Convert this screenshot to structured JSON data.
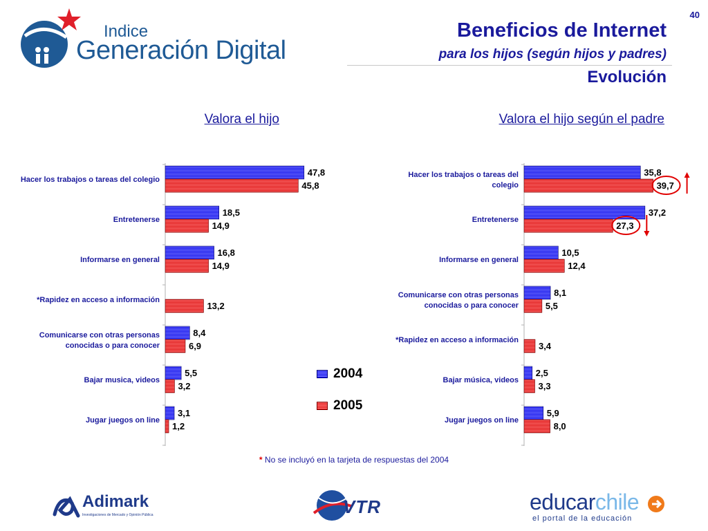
{
  "page_number": "40",
  "title": {
    "line1": "Beneficios de Internet",
    "line2": "para los hijos (según hijos y padres)",
    "line3": "Evolución"
  },
  "logos": {
    "top_left_small": "Indice",
    "top_left_big": "Generación Digital",
    "adimark": "Adimark",
    "adimark_sub": "Investigaciones de Mercado y Opinión Pública",
    "vtr": "VTR",
    "educar_a": "educar",
    "educar_b": "chile",
    "educar_sub": "el portal de la educación"
  },
  "legend": [
    {
      "label": "2004",
      "color": "#1f1fff"
    },
    {
      "label": "2005",
      "color": "#ff1f1f"
    }
  ],
  "footnote": {
    "star": "*",
    "text": " No se incluyó en la tarjeta de respuestas del 2004"
  },
  "chart_data": [
    {
      "type": "bar",
      "orientation": "horizontal",
      "title": "Valora el hijo",
      "categories": [
        [
          "Hacer los trabajos o tareas del colegio"
        ],
        [
          "Entretenerse"
        ],
        [
          "Informarse en general"
        ],
        [
          "*Rapidez en acceso a información"
        ],
        [
          "Comunicarse con otras personas",
          "conocidas o para conocer"
        ],
        [
          "Bajar musica, videos"
        ],
        [
          "Jugar juegos on line"
        ]
      ],
      "series": [
        {
          "name": "2004",
          "values": [
            47.8,
            18.5,
            16.8,
            null,
            8.4,
            5.5,
            3.1
          ],
          "labels": [
            "47,8",
            "18,5",
            "16,8",
            "",
            "8,4",
            "5,5",
            "3,1"
          ]
        },
        {
          "name": "2005",
          "values": [
            45.8,
            14.9,
            14.9,
            13.2,
            6.9,
            3.2,
            1.2
          ],
          "labels": [
            "45,8",
            "14,9",
            "14,9",
            "13,2",
            "6,9",
            "3,2",
            "1,2"
          ]
        }
      ],
      "xlim": [
        0,
        100
      ]
    },
    {
      "type": "bar",
      "orientation": "horizontal",
      "title": "Valora el hijo según el padre",
      "categories": [
        [
          "Hacer los trabajos o tareas del",
          "colegio"
        ],
        [
          "Entretenerse"
        ],
        [
          "Informarse en general"
        ],
        [
          "Comunicarse con otras personas",
          "conocidas o para conocer"
        ],
        [
          "*Rapidez en acceso a información"
        ],
        [
          "Bajar música, videos"
        ],
        [
          "Jugar juegos on line"
        ]
      ],
      "series": [
        {
          "name": "2004",
          "values": [
            35.8,
            37.2,
            10.5,
            8.1,
            null,
            2.5,
            5.9
          ],
          "labels": [
            "35,8",
            "37,2",
            "10,5",
            "8,1",
            "",
            "2,5",
            "5,9"
          ]
        },
        {
          "name": "2005",
          "values": [
            39.7,
            27.3,
            12.4,
            5.5,
            3.4,
            3.3,
            8.0
          ],
          "labels": [
            "39,7",
            "27,3",
            "12,4",
            "5,5",
            "3,4",
            "3,3",
            "8,0"
          ]
        }
      ],
      "highlights": [
        {
          "category_index": 0,
          "series": "2005",
          "direction": "up"
        },
        {
          "category_index": 1,
          "series": "2005",
          "direction": "down"
        }
      ],
      "xlim": [
        0,
        100
      ]
    }
  ]
}
